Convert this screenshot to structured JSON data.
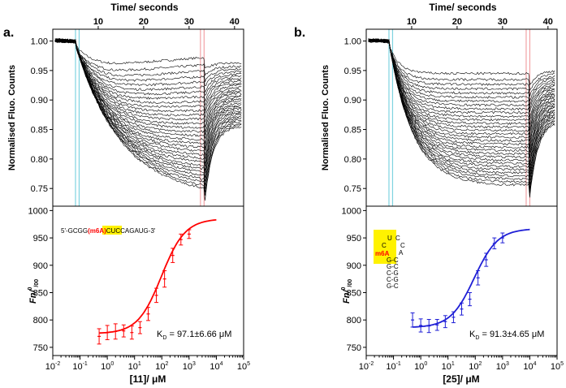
{
  "chart_data": [
    {
      "panel": "a.",
      "type": "line",
      "title": "Time/ seconds",
      "xlabel": "Time/ seconds",
      "ylabel": "Normalised Fluo. Counts",
      "xticks": [
        "10",
        "20",
        "30",
        "40"
      ],
      "yticks": [
        "1.00",
        "0.95",
        "0.90",
        "0.85",
        "0.80",
        "0.75"
      ],
      "xlim": [
        0,
        42
      ],
      "ylim": [
        0.72,
        1.02
      ],
      "trace_count": 32,
      "trace_min_bound": [
        0.735,
        0.96
      ],
      "regions": [
        {
          "name": "cold",
          "range": [
            5.0,
            5.8
          ],
          "color": "#7fd3e0"
        },
        {
          "name": "hot",
          "range": [
            32.5,
            33.3
          ],
          "color": "#f2a3a6"
        }
      ]
    },
    {
      "panel": "a.",
      "type": "scatter",
      "ylabel_main": "Fn/",
      "ylabel_sup": "0",
      "ylabel_sub": "/00",
      "xlabel": "[11]/ μM",
      "xticks": [
        "10",
        "10",
        "10",
        "10",
        "10",
        "10",
        "10",
        "10"
      ],
      "xtick_exps": [
        "-2",
        "-1",
        "0",
        "1",
        "2",
        "3",
        "4",
        "5"
      ],
      "yticks": [
        "1000",
        "950",
        "900",
        "850",
        "800",
        "750"
      ],
      "xlim_log10": [
        -2,
        5
      ],
      "ylim": [
        735,
        1008
      ],
      "x_log10": [
        -0.3,
        0.0,
        0.3,
        0.6,
        0.9,
        1.2,
        1.5,
        1.8,
        2.1,
        2.4,
        2.7,
        3.0
      ],
      "y": [
        770,
        777,
        779,
        780,
        777,
        786,
        811,
        845,
        875,
        918,
        947,
        957
      ],
      "err": [
        14,
        13,
        14,
        11,
        12,
        11,
        12,
        13,
        15,
        13,
        10,
        8
      ],
      "fit": {
        "bottom": 775,
        "top": 985,
        "log_kd": 1.987,
        "x_log10_range": [
          -0.3,
          4.0
        ]
      },
      "color": "#ff0000",
      "sequence": {
        "pre": "5'-GC",
        "g": "GG",
        "mod": "(m6A)",
        "cu": "CU",
        "post": "CCAGAUG-3'"
      },
      "annotation": {
        "kd": "K",
        "kd_sub": "D",
        "kd_value": " = 97.1±6.66 μM"
      }
    },
    {
      "panel": "b.",
      "type": "line",
      "title": "Time/ seconds",
      "xlabel": "Time/ seconds",
      "ylabel": "Normalised Fluo. Counts",
      "xticks": [
        "10",
        "20",
        "30",
        "40"
      ],
      "yticks": [
        "1.00",
        "0.95",
        "0.90",
        "0.85",
        "0.80",
        "0.75"
      ],
      "xlim": [
        0,
        42
      ],
      "ylim": [
        0.72,
        1.02
      ],
      "trace_count": 32,
      "trace_min_bound": [
        0.755,
        0.945
      ],
      "regions": [
        {
          "name": "cold",
          "range": [
            5.0,
            5.8
          ],
          "color": "#7fd3e0"
        },
        {
          "name": "hot",
          "range": [
            35.2,
            36.0
          ],
          "color": "#f2a3a6"
        }
      ]
    },
    {
      "panel": "b.",
      "type": "scatter",
      "ylabel_main": "Fn/",
      "ylabel_sup": "0",
      "ylabel_sub": "/00",
      "xlabel": "[25]/ μM",
      "xticks": [
        "10",
        "10",
        "10",
        "10",
        "10",
        "10",
        "10",
        "10"
      ],
      "xtick_exps": [
        "-2",
        "-1",
        "0",
        "1",
        "2",
        "3",
        "4",
        "5"
      ],
      "yticks": [
        "1000",
        "950",
        "900",
        "850",
        "800",
        "750"
      ],
      "xlim_log10": [
        -2,
        5
      ],
      "ylim": [
        735,
        1008
      ],
      "x_log10": [
        -0.3,
        0.0,
        0.3,
        0.6,
        0.9,
        1.2,
        1.5,
        1.8,
        2.1,
        2.4,
        2.7,
        3.0
      ],
      "y": [
        800,
        790,
        789,
        791,
        797,
        805,
        820,
        838,
        877,
        910,
        940,
        950
      ],
      "err": [
        13,
        12,
        12,
        10,
        11,
        10,
        11,
        12,
        13,
        12,
        10,
        9
      ],
      "fit": {
        "bottom": 786,
        "top": 967,
        "log_kd": 1.96,
        "x_log10_range": [
          -0.3,
          4.0
        ]
      },
      "color": "#1f1fd6",
      "hairpin": {
        "u": "U",
        "c1": "C",
        "c2": "C",
        "c3": "C",
        "a": "A",
        "mod": "m6A",
        "pairs": [
          "G-C",
          "G-C",
          "C-G",
          "C-G",
          "G-C"
        ]
      },
      "annotation": {
        "kd": "K",
        "kd_sub": "D",
        "kd_value": " = 91.3±4.65 μM"
      }
    }
  ]
}
